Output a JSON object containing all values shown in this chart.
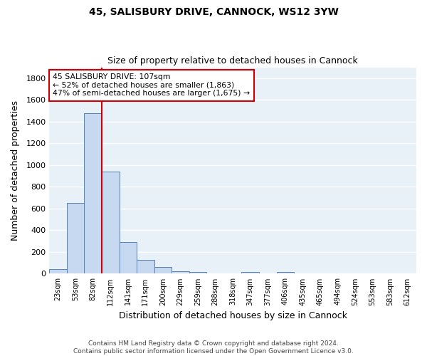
{
  "title1": "45, SALISBURY DRIVE, CANNOCK, WS12 3YW",
  "title2": "Size of property relative to detached houses in Cannock",
  "xlabel": "Distribution of detached houses by size in Cannock",
  "ylabel": "Number of detached properties",
  "categories": [
    "23sqm",
    "53sqm",
    "82sqm",
    "112sqm",
    "141sqm",
    "171sqm",
    "200sqm",
    "229sqm",
    "259sqm",
    "288sqm",
    "318sqm",
    "347sqm",
    "377sqm",
    "406sqm",
    "435sqm",
    "465sqm",
    "494sqm",
    "524sqm",
    "553sqm",
    "583sqm",
    "612sqm"
  ],
  "values": [
    40,
    650,
    1475,
    940,
    290,
    130,
    65,
    25,
    15,
    0,
    0,
    15,
    0,
    15,
    0,
    0,
    0,
    0,
    0,
    0,
    0
  ],
  "bar_color": "#c6d9f0",
  "bar_edge_color": "#5580b0",
  "bg_color": "#e8f0f8",
  "grid_color": "#ffffff",
  "vline_x": 2.5,
  "vline_color": "#cc0000",
  "annotation_text": "45 SALISBURY DRIVE: 107sqm\n← 52% of detached houses are smaller (1,863)\n47% of semi-detached houses are larger (1,675) →",
  "annotation_box_color": "#ffffff",
  "annotation_box_edge": "#cc0000",
  "ylim": [
    0,
    1900
  ],
  "yticks": [
    0,
    200,
    400,
    600,
    800,
    1000,
    1200,
    1400,
    1600,
    1800
  ],
  "footer": "Contains HM Land Registry data © Crown copyright and database right 2024.\nContains public sector information licensed under the Open Government Licence v3.0.",
  "fig_bg": "#ffffff"
}
